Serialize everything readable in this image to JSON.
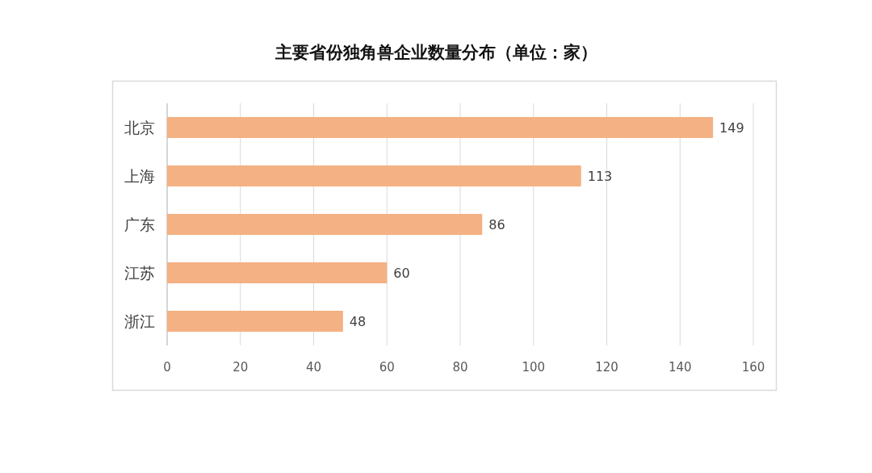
{
  "chart_data": {
    "type": "bar",
    "orientation": "horizontal",
    "title": "主要省份独角兽企业数量分布（单位：家）",
    "categories": [
      "北京",
      "上海",
      "广东",
      "江苏",
      "浙江"
    ],
    "values": [
      149,
      113,
      86,
      60,
      48
    ],
    "color": "#f4b183",
    "xlim": [
      0,
      160
    ],
    "xticks": [
      0,
      20,
      40,
      60,
      80,
      100,
      120,
      140,
      160
    ],
    "grid": "x",
    "data_labels": true
  }
}
